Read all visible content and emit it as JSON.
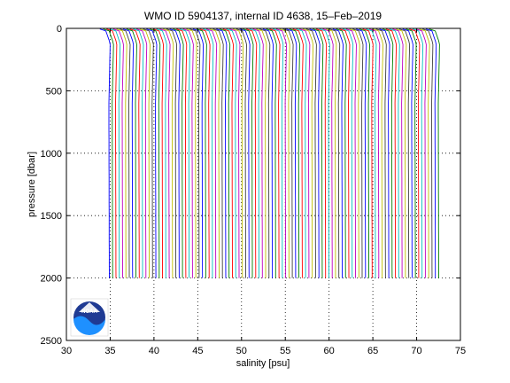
{
  "chart_data": {
    "type": "line",
    "title": "WMO ID 5904137, internal ID 4638, 15–Feb–2019",
    "xlabel": "salinity [psu]",
    "ylabel": "pressure [dbar]",
    "xlim": [
      30,
      75
    ],
    "ylim": [
      2500,
      0
    ],
    "y_reversed": true,
    "grid": "dotted",
    "x_ticks": [
      30,
      35,
      40,
      45,
      50,
      55,
      60,
      65,
      70,
      75
    ],
    "y_ticks": [
      0,
      500,
      1000,
      1500,
      2000,
      2500
    ],
    "x_tick_labels": [
      "30",
      "35",
      "40",
      "45",
      "50",
      "55",
      "60",
      "65",
      "70",
      "75"
    ],
    "y_tick_labels": [
      "0",
      "500",
      "1000",
      "1500",
      "2000",
      "2500"
    ],
    "profile_count": 100,
    "first_profile_deep_salinity": 34.9,
    "profile_offset_psu": 0.38,
    "profile_max_pressure": 2000,
    "series_colors": [
      "#0000ff",
      "#008000",
      "#ff0000",
      "#00bfbf",
      "#bf00bf",
      "#bfbf00",
      "#404040"
    ]
  },
  "logo": {
    "name": "NOAA",
    "text": "NOAA"
  }
}
